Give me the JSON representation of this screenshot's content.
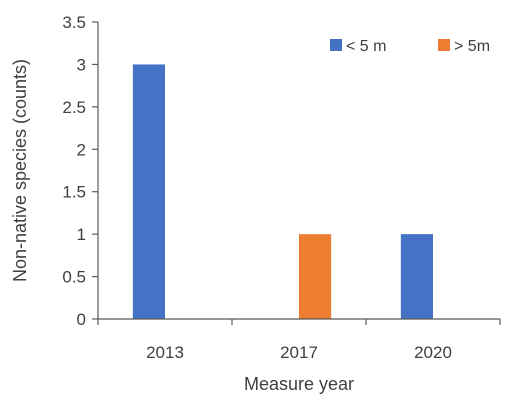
{
  "chart_data": {
    "type": "bar",
    "categories": [
      "2013",
      "2017",
      "2020"
    ],
    "series": [
      {
        "name": "< 5 m",
        "color": "#4472c4",
        "values": [
          3,
          0,
          1
        ]
      },
      {
        "name": "> 5m",
        "color": "#ed7d31",
        "values": [
          0,
          1,
          0
        ]
      }
    ],
    "xlabel": "Measure year",
    "ylabel": "Non-native  species  (counts)",
    "ylim": [
      0,
      3.5
    ],
    "yticks": [
      "0",
      "0.5",
      "1",
      "1.5",
      "2",
      "2.5",
      "3",
      "3.5"
    ],
    "grid": false,
    "legend_position": "top-right"
  }
}
